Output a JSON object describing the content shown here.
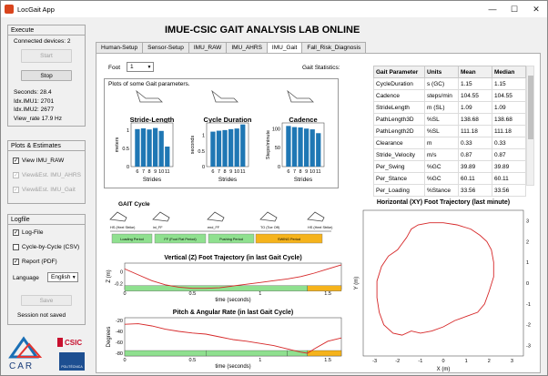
{
  "window": {
    "title": "LocGait App"
  },
  "execute": {
    "title": "Execute",
    "connected_devices": "Connected devices:  2",
    "start_label": "Start",
    "stop_label": "Stop",
    "seconds": "Seconds: 28.4",
    "idx_imu1": "Idx.IMU1: 2701",
    "idx_imu2": "Idx.IMU2: 2677",
    "view_rate": "View_rate 17.9 Hz"
  },
  "plots_estimates": {
    "title": "Plots & Estimates",
    "view_imu_raw": "View IMU_RAW",
    "view_imu_ahrs": "View&Est. IMU_AHRS",
    "view_imu_gait": "View&Est. IMU_Gait"
  },
  "logfile": {
    "title": "Logfile",
    "log_file": "Log-File",
    "cycle_by_cycle": "Cycle-by-Cycle (CSV)",
    "report": "Report (PDF)",
    "language_label": "Language",
    "language_value": "English",
    "save_label": "Save",
    "session_status": "Session not saved"
  },
  "logos": {
    "car": "CAR",
    "csic": "CSIC",
    "upm": "POLITÉCNICA"
  },
  "header": {
    "title": "IMUE-CSIC GAIT ANALYSIS LAB ONLINE"
  },
  "tabs": [
    {
      "label": "Human-Setup"
    },
    {
      "label": "Sensor-Setup"
    },
    {
      "label": "IMU_RAW"
    },
    {
      "label": "IMU_AHRS"
    },
    {
      "label": "IMU_Gait"
    },
    {
      "label": "Fall_Risk_Diagnosis"
    }
  ],
  "foot": {
    "label": "Foot",
    "value": "1"
  },
  "gait_stats": {
    "label": "Gait Statistics:",
    "headers": [
      "Gait Parameter",
      "Units",
      "Mean",
      "Median"
    ],
    "rows": [
      [
        "CycleDuration",
        "s (GC)",
        "1.15",
        "1.15"
      ],
      [
        "Cadence",
        "steps/min",
        "104.55",
        "104.55"
      ],
      [
        "StrideLength",
        "m (SL)",
        "1.09",
        "1.09"
      ],
      [
        "PathLength3D",
        "%SL",
        "138.68",
        "138.68"
      ],
      [
        "PathLength2D",
        "%SL",
        "111.18",
        "111.18"
      ],
      [
        "Clearance",
        "m",
        "0.33",
        "0.33"
      ],
      [
        "Stride_Velocity",
        "m/s",
        "0.87",
        "0.87"
      ],
      [
        "Per_Swing",
        "%GC",
        "39.89",
        "39.89"
      ],
      [
        "Per_Stance",
        "%GC",
        "60.11",
        "60.11"
      ],
      [
        "Per_Loading",
        "%Stance",
        "33.56",
        "33.56"
      ]
    ]
  },
  "param_plots": {
    "title": "Plots of some Gait parameters.",
    "chart_data": [
      {
        "type": "bar",
        "title": "Stride-Length",
        "xlabel": "Strides",
        "ylabel": "meters",
        "categories": [
          "6",
          "7",
          "8",
          "9",
          "10",
          "11"
        ],
        "values": [
          1.03,
          1.05,
          1.02,
          1.06,
          0.98,
          0.55
        ],
        "ylim": [
          0,
          1.2
        ],
        "yticks": [
          "0",
          "0.5",
          "1"
        ],
        "color": "#1f77b4"
      },
      {
        "type": "bar",
        "title": "Cycle Duration",
        "xlabel": "Strides",
        "ylabel": "seconds",
        "categories": [
          "6",
          "7",
          "8",
          "9",
          "10",
          "11"
        ],
        "values": [
          1.12,
          1.15,
          1.17,
          1.2,
          1.22,
          1.35
        ],
        "ylim": [
          0,
          1.4
        ],
        "yticks": [
          "0",
          "0.5",
          "1"
        ],
        "color": "#1f77b4"
      },
      {
        "type": "bar",
        "title": "Cadence",
        "xlabel": "Strides",
        "ylabel": "Steps/minute",
        "categories": [
          "6",
          "7",
          "8",
          "9",
          "10",
          "11"
        ],
        "values": [
          107,
          104,
          103,
          100,
          98,
          88
        ],
        "ylim": [
          0,
          115
        ],
        "yticks": [
          "0",
          "50",
          "100"
        ],
        "color": "#1f77b4"
      }
    ]
  },
  "gait_cycle": {
    "title": "GAIT Cycle",
    "events": [
      "HS (Heel Strike)",
      "ini_FF",
      "end_FF",
      "TO (Toe Off)",
      "HS (Heel Strike)"
    ],
    "phases": [
      {
        "label": "Loading Period",
        "color": "#8fe08f"
      },
      {
        "label": "FF (Foot Flat Period)",
        "color": "#8fe08f"
      },
      {
        "label": "Pushing Period",
        "color": "#8fe08f"
      },
      {
        "label": "SWING Period",
        "color": "#f5b31c"
      }
    ]
  },
  "vertical_plot": {
    "chart_data": {
      "type": "line",
      "title": "Vertical (Z) Foot Trajectory (in last Gait Cycle)",
      "xlabel": "time (seconds)",
      "ylabel": "Z (m)",
      "xlim": [
        0,
        1.6
      ],
      "ylim": [
        -0.3,
        0.15
      ],
      "xticks": [
        "0",
        "0.5",
        "1",
        "1.5"
      ],
      "yticks": [
        "0",
        "-0.2"
      ],
      "x": [
        0,
        0.1,
        0.2,
        0.3,
        0.4,
        0.5,
        0.6,
        0.7,
        0.8,
        0.9,
        1.0,
        1.1,
        1.2,
        1.3,
        1.35,
        1.4,
        1.5,
        1.6
      ],
      "y": [
        0.05,
        -0.05,
        -0.15,
        -0.22,
        -0.26,
        -0.28,
        -0.28,
        -0.27,
        -0.24,
        -0.21,
        -0.18,
        -0.15,
        -0.12,
        -0.08,
        -0.05,
        -0.02,
        0.05,
        0.12
      ],
      "color": "#d62728"
    }
  },
  "pitch_plot": {
    "chart_data": {
      "type": "line",
      "title": "Pitch & Angular Rate (in last Gait Cycle)",
      "xlabel": "time (seconds)",
      "ylabel": "Degrees",
      "xlim": [
        0,
        1.6
      ],
      "ylim": [
        -85,
        -15
      ],
      "xticks": [
        "0",
        "0.5",
        "1",
        "1.5"
      ],
      "yticks": [
        "-20",
        "-40",
        "-60",
        "-80"
      ],
      "x": [
        0,
        0.1,
        0.2,
        0.3,
        0.4,
        0.5,
        0.6,
        0.7,
        0.8,
        0.9,
        1.0,
        1.1,
        1.2,
        1.3,
        1.35,
        1.4,
        1.5,
        1.6
      ],
      "y": [
        -27,
        -26,
        -30,
        -36,
        -40,
        -43,
        -45,
        -50,
        -55,
        -58,
        -62,
        -66,
        -72,
        -78,
        -80,
        -72,
        -58,
        -52
      ],
      "color": "#d62728"
    }
  },
  "xy_plot": {
    "chart_data": {
      "type": "line",
      "title": "Horizontal (XY) Foot Trajectory (last minute)",
      "xlabel": "X (m)",
      "ylabel": "Y (m)",
      "xlim": [
        -3.5,
        3.5
      ],
      "ylim": [
        -3.5,
        3.5
      ],
      "xticks": [
        "-3",
        "-2",
        "-1",
        "0",
        "1",
        "2",
        "3"
      ],
      "yticks": [
        "3",
        "2",
        "1",
        "0",
        "-1",
        "-2",
        "-3"
      ],
      "x": [
        -1.6,
        -1.4,
        -1.1,
        -0.6,
        0.0,
        0.6,
        1.2,
        1.6,
        1.9,
        2.1,
        2.2,
        2.2,
        2.0,
        1.8,
        1.5,
        1.0,
        0.5,
        0.0,
        -0.5,
        -1.0,
        -1.4,
        -1.8,
        -2.2,
        -2.6,
        -2.8,
        -2.9,
        -2.9,
        -2.7,
        -2.4,
        -2.0,
        -1.8,
        -1.6
      ],
      "y": [
        2.2,
        2.6,
        2.8,
        2.9,
        2.9,
        2.8,
        2.6,
        2.3,
        2.0,
        1.6,
        1.0,
        0.3,
        -0.4,
        -1.0,
        -1.4,
        -1.6,
        -1.8,
        -2.1,
        -2.3,
        -2.4,
        -2.3,
        -2.5,
        -2.4,
        -2.0,
        -1.4,
        -0.7,
        0.1,
        0.8,
        1.3,
        1.6,
        1.9,
        2.2
      ],
      "color": "#d62728"
    }
  }
}
